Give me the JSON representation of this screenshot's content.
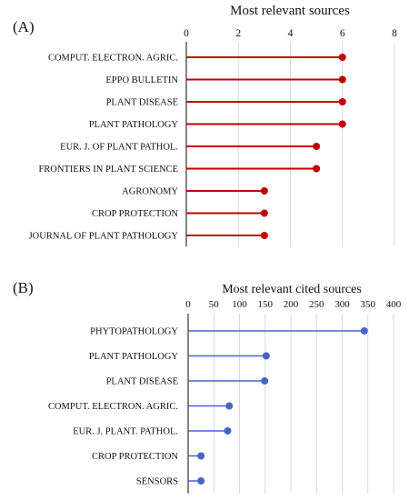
{
  "chart_data": [
    {
      "panel": "(A)",
      "type": "lollipop",
      "orientation": "horizontal",
      "title": "Most relevant sources",
      "categories": [
        "COMPUT. ELECTRON. AGRIC.",
        "EPPO BULLETIN",
        "PLANT DISEASE",
        "PLANT PATHOLOGY",
        "EUR. J. OF PLANT PATHOL.",
        "FRONTIERS IN PLANT SCIENCE",
        "AGRONOMY",
        "CROP PROTECTION",
        "JOURNAL OF PLANT PATHOLOGY"
      ],
      "values": [
        6,
        6,
        6,
        6,
        5,
        5,
        3,
        3,
        3
      ],
      "xlim": [
        0,
        8
      ],
      "x_ticks": [
        0,
        2,
        4,
        6,
        8
      ],
      "x_tick_labels": [
        "0",
        "2",
        "4",
        "6",
        "8"
      ],
      "grid": true,
      "color": "#c00000"
    },
    {
      "panel": "(B)",
      "type": "lollipop",
      "orientation": "horizontal",
      "title": "Most relevant cited sources",
      "categories": [
        "PHYTOPATHOLOGY",
        "PLANT PATHOLOGY",
        "PLANT DISEASE",
        "COMPUT.  ELECTRON.  AGRIC.",
        "EUR.  J.  PLANT.  PATHOL.",
        "CROP PROTECTION",
        "SENSORS"
      ],
      "values": [
        343,
        152,
        149,
        80,
        77,
        25,
        25
      ],
      "xlim": [
        0,
        400
      ],
      "x_ticks": [
        0,
        50,
        100,
        150,
        200,
        250,
        300,
        350,
        400
      ],
      "x_tick_labels": [
        "0",
        "50",
        "100",
        "150",
        "200",
        "250",
        "300",
        "350",
        "400"
      ],
      "grid": true,
      "color": "#4a63c8"
    }
  ]
}
